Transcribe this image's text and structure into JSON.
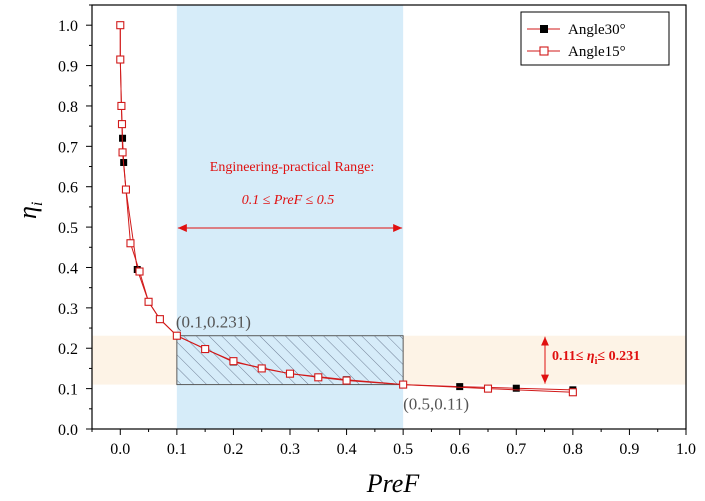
{
  "chart_data": {
    "type": "line",
    "xlabel": "PreF",
    "ylabel": "η",
    "ylabel_sub": "i",
    "xlim": [
      -0.05,
      1.0
    ],
    "ylim": [
      0.0,
      1.05
    ],
    "xticks": [
      "0.0",
      "0.1",
      "0.2",
      "0.3",
      "0.4",
      "0.5",
      "0.6",
      "0.7",
      "0.8",
      "0.9",
      "1.0"
    ],
    "yticks": [
      "0.0",
      "0.1",
      "0.2",
      "0.3",
      "0.4",
      "0.5",
      "0.6",
      "0.7",
      "0.8",
      "0.9",
      "1.0"
    ],
    "grid": false,
    "legend_position": "top-right",
    "series": [
      {
        "name": "Angle30°",
        "marker": "filled-square",
        "color": "#000000",
        "line_color": "#d11a1a",
        "x": [
          0.0,
          0.0,
          0.002,
          0.004,
          0.006,
          0.01,
          0.03,
          0.05,
          0.07,
          0.1,
          0.2,
          0.3,
          0.4,
          0.5,
          0.6,
          0.7,
          0.8
        ],
        "y": [
          1.0,
          0.915,
          0.8,
          0.72,
          0.66,
          0.593,
          0.395,
          0.315,
          0.272,
          0.231,
          0.166,
          0.137,
          0.122,
          0.11,
          0.105,
          0.101,
          0.097
        ]
      },
      {
        "name": "Angle15°",
        "marker": "open-square",
        "color": "#d11a1a",
        "line_color": "#d11a1a",
        "x": [
          0.0,
          0.0,
          0.002,
          0.003,
          0.004,
          0.01,
          0.018,
          0.034,
          0.05,
          0.07,
          0.1,
          0.15,
          0.2,
          0.25,
          0.3,
          0.35,
          0.4,
          0.5,
          0.65,
          0.8
        ],
        "y": [
          1.0,
          0.915,
          0.8,
          0.755,
          0.685,
          0.593,
          0.46,
          0.39,
          0.315,
          0.272,
          0.231,
          0.198,
          0.168,
          0.15,
          0.137,
          0.128,
          0.12,
          0.11,
          0.1,
          0.091
        ]
      }
    ],
    "regions": {
      "blue_band": {
        "x_from": 0.1,
        "x_to": 0.5,
        "color": "#d6ecf9"
      },
      "beige_band": {
        "y_from": 0.11,
        "y_to": 0.231,
        "color": "#fdf3e6"
      },
      "hatched_box": {
        "x_from": 0.1,
        "x_to": 0.5,
        "y_from": 0.11,
        "y_to": 0.231
      }
    },
    "annotations": {
      "range_title": "Engineering-practical Range:",
      "range_expr": "0.1 ≤ PreF ≤  0.5",
      "point_start": "(0.1,0.231)",
      "point_end": "(0.5,0.11)",
      "eta_range_left": "0.11≤ ",
      "eta_symbol": "η",
      "eta_sub": "i",
      "eta_range_right": "≤ 0.231"
    },
    "accent_red": "#e01010"
  }
}
